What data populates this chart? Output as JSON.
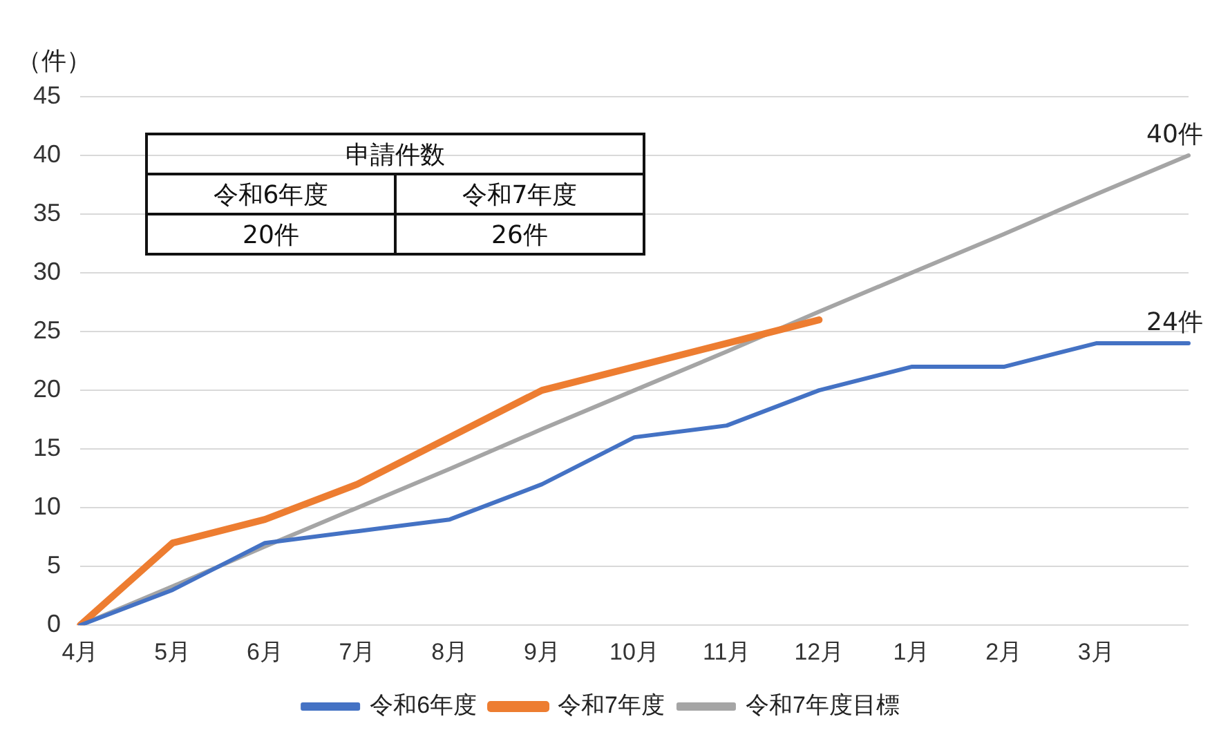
{
  "chart_data": {
    "type": "line",
    "ylabel": "（件）",
    "categories": [
      "4月",
      "5月",
      "6月",
      "7月",
      "8月",
      "9月",
      "10月",
      "11月",
      "12月",
      "1月",
      "2月",
      "3月",
      null
    ],
    "series": [
      {
        "name": "令和6年度",
        "color": "#4472c4",
        "values": [
          0,
          3,
          7,
          8,
          9,
          12,
          16,
          17,
          20,
          22,
          22,
          24,
          24
        ]
      },
      {
        "name": "令和7年度",
        "color": "#ed7d31",
        "values": [
          0,
          7,
          9,
          12,
          16,
          20,
          22,
          24,
          26,
          null,
          null,
          null,
          null
        ]
      },
      {
        "name": "令和7年度目標",
        "color": "#a5a5a5",
        "values": [
          0,
          3.3,
          6.7,
          10,
          13.3,
          16.7,
          20,
          23.3,
          26.7,
          30,
          33.3,
          36.7,
          40
        ]
      }
    ],
    "ylim": [
      0,
      45
    ],
    "yticks": [
      0,
      5,
      10,
      15,
      20,
      25,
      30,
      35,
      40,
      45
    ],
    "grid": "y",
    "legend": "bottom",
    "marker": "none",
    "line_style": "solid",
    "annotations": [
      "申請件数",
      "令和6年度",
      "令和7年度",
      "20件",
      "26件",
      {
        "text": "40件",
        "y": 40
      },
      {
        "text": "24件",
        "y": 24
      }
    ]
  }
}
